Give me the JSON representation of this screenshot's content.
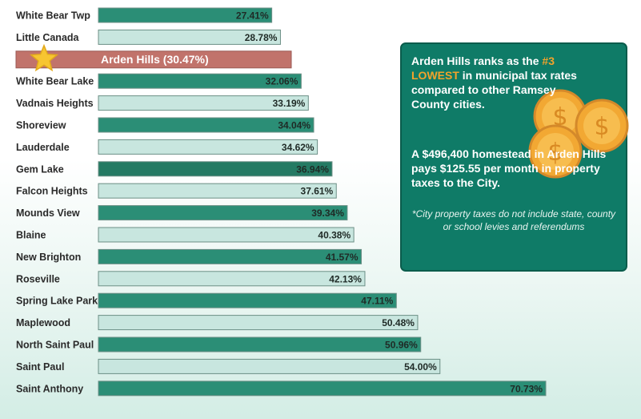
{
  "chart_data": {
    "type": "bar",
    "orientation": "horizontal",
    "unit": "%",
    "categories": [
      "White Bear Twp",
      "Little Canada",
      "Arden Hills (30.47%)",
      "White Bear Lake",
      "Vadnais Heights",
      "Shoreview",
      "Lauderdale",
      "Gem Lake",
      "Falcon Heights",
      "Mounds View",
      "Blaine",
      "New Brighton",
      "Roseville",
      "Spring Lake Park",
      "Maplewood",
      "North Saint Paul",
      "Saint Paul",
      "Saint Anthony"
    ],
    "values": [
      27.41,
      28.78,
      30.47,
      32.06,
      33.19,
      34.04,
      34.62,
      36.94,
      37.61,
      39.34,
      40.38,
      41.57,
      42.13,
      47.11,
      50.48,
      50.96,
      54.0,
      70.73
    ],
    "value_labels": [
      "27.41%",
      "28.78%",
      "",
      "32.06%",
      "33.19%",
      "34.04%",
      "34.62%",
      "36.94%",
      "37.61%",
      "39.34%",
      "40.38%",
      "41.57%",
      "42.13%",
      "47.11%",
      "50.48%",
      "50.96%",
      "54.00%",
      "70.73%"
    ],
    "highlight_index": 2,
    "colors": {
      "dark": "#2b8e76",
      "gem_lake": "#247a63",
      "light": "#c8e6df",
      "highlight": "#c1736b",
      "border": "#6c8f86",
      "star": "#f7c531"
    },
    "fill_pattern": [
      "dark",
      "light",
      "highlight",
      "dark",
      "light",
      "dark",
      "light",
      "gem_lake",
      "light",
      "dark",
      "light",
      "dark",
      "light",
      "dark",
      "light",
      "dark",
      "light",
      "dark"
    ],
    "grid": false,
    "legend": "none"
  },
  "info": {
    "headline_pre": "Arden Hills ranks as the ",
    "headline_accent": "#3 LOWEST",
    "headline_post": " in municipal tax rates compared to other Ramsey County cities.",
    "body": "A $496,400 homestead in Arden Hills pays $125.55 per month in property taxes to the City.",
    "footnote": "*City property taxes do not include state, county or school levies and referendums",
    "accent_color": "#f3a32b",
    "box_color": "#0f7b67"
  },
  "icons": {
    "star": "star-icon",
    "coin": "dollar-coin-icon"
  }
}
